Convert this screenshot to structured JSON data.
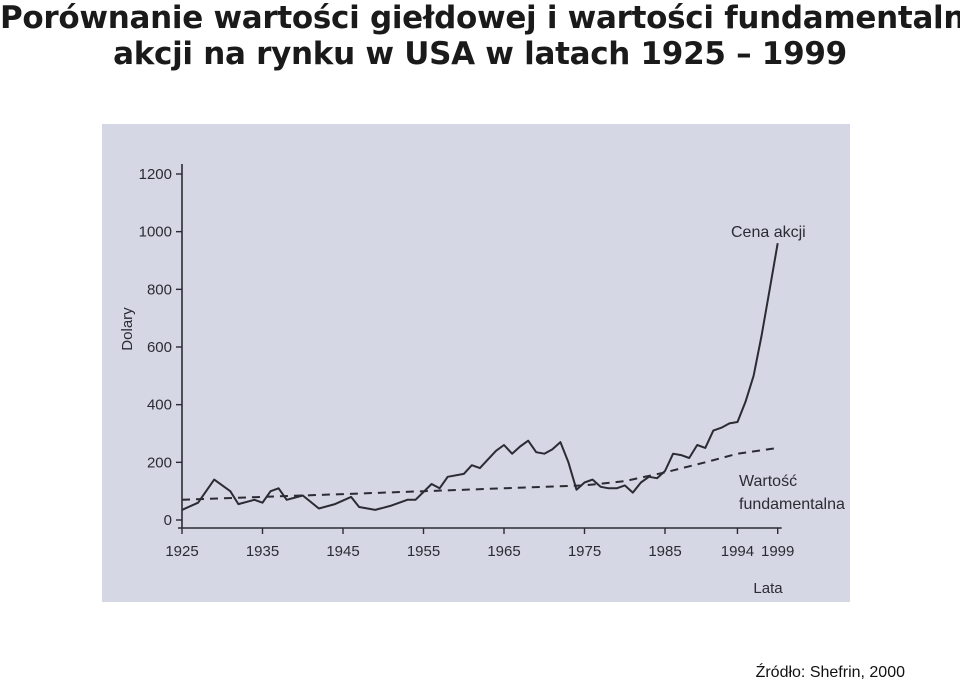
{
  "title": {
    "line1": "Porównanie wartości giełdowej i wartości fundamentalnej",
    "line2": "akcji na rynku w USA w latach 1925 – 1999"
  },
  "source": "Źródło: Shefrin, 2000",
  "chart_data": {
    "type": "line",
    "ylabel": "Dolary",
    "xlabel": "Lata",
    "ylim": [
      0,
      1200
    ],
    "y_ticks": [
      "0",
      "200",
      "400",
      "600",
      "800",
      "1000",
      "1200"
    ],
    "x_ticks": [
      "1925",
      "1935",
      "1945",
      "1955",
      "1965",
      "1975",
      "1985",
      "1994",
      "1999"
    ],
    "grid": false,
    "series": [
      {
        "name": "Cena akcji",
        "style": "solid",
        "color": "#2b2b33",
        "points": [
          [
            1925,
            35
          ],
          [
            1927,
            60
          ],
          [
            1929,
            140
          ],
          [
            1931,
            100
          ],
          [
            1932,
            55
          ],
          [
            1934,
            70
          ],
          [
            1935,
            60
          ],
          [
            1936,
            100
          ],
          [
            1937,
            110
          ],
          [
            1938,
            70
          ],
          [
            1940,
            85
          ],
          [
            1942,
            40
          ],
          [
            1944,
            55
          ],
          [
            1946,
            80
          ],
          [
            1947,
            45
          ],
          [
            1949,
            35
          ],
          [
            1951,
            50
          ],
          [
            1953,
            70
          ],
          [
            1954,
            70
          ],
          [
            1956,
            125
          ],
          [
            1957,
            110
          ],
          [
            1958,
            150
          ],
          [
            1960,
            160
          ],
          [
            1961,
            190
          ],
          [
            1962,
            180
          ],
          [
            1964,
            240
          ],
          [
            1965,
            260
          ],
          [
            1966,
            230
          ],
          [
            1967,
            255
          ],
          [
            1968,
            275
          ],
          [
            1969,
            235
          ],
          [
            1970,
            230
          ],
          [
            1971,
            245
          ],
          [
            1972,
            270
          ],
          [
            1973,
            200
          ],
          [
            1974,
            105
          ],
          [
            1975,
            130
          ],
          [
            1976,
            140
          ],
          [
            1977,
            115
          ],
          [
            1978,
            110
          ],
          [
            1979,
            110
          ],
          [
            1980,
            120
          ],
          [
            1981,
            95
          ],
          [
            1982,
            130
          ],
          [
            1983,
            150
          ],
          [
            1984,
            145
          ],
          [
            1985,
            170
          ],
          [
            1986,
            230
          ],
          [
            1987,
            225
          ],
          [
            1988,
            215
          ],
          [
            1989,
            260
          ],
          [
            1990,
            250
          ],
          [
            1991,
            310
          ],
          [
            1992,
            320
          ],
          [
            1993,
            335
          ],
          [
            1994,
            340
          ],
          [
            1995,
            410
          ],
          [
            1996,
            500
          ],
          [
            1997,
            640
          ],
          [
            1998,
            800
          ],
          [
            1999,
            960
          ]
        ]
      },
      {
        "name": "Wartość fundamentalna",
        "style": "dashed",
        "color": "#2b2b33",
        "points": [
          [
            1925,
            70
          ],
          [
            1935,
            80
          ],
          [
            1945,
            90
          ],
          [
            1955,
            100
          ],
          [
            1965,
            110
          ],
          [
            1975,
            120
          ],
          [
            1980,
            135
          ],
          [
            1985,
            165
          ],
          [
            1990,
            200
          ],
          [
            1994,
            230
          ],
          [
            1999,
            250
          ]
        ]
      }
    ],
    "annotations": {
      "price_label": "Cena akcji",
      "fundamental_label_line1": "Wartość",
      "fundamental_label_line2": "fundamentalna"
    }
  }
}
